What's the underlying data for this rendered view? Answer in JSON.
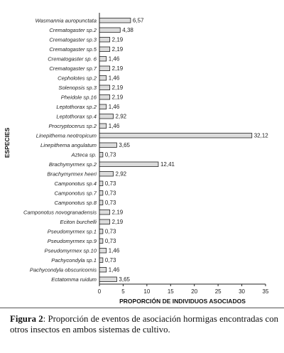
{
  "chart_data": {
    "type": "bar",
    "orientation": "horizontal",
    "categories": [
      "Wasmannia auropunctata",
      "Crematogaster sp.2",
      "Crematogaster sp.3",
      "Crematogaster sp.5",
      "Crematogaster sp. 6",
      "Crematogaster sp.7",
      "Cepholotes sp.2",
      "Solenopsis sp.3",
      "Pheidole sp.16",
      "Leptothorax sp.2",
      "Leptothorax sp.4",
      "Procryptocerus sp.2",
      "Linepithema neotropicum",
      "Linepithema angulatum",
      "Azteca sp.",
      "Brachymyrmex sp.2",
      "Brachymyrmex heeri",
      "Camponotus sp.4",
      "Camponotus sp.7",
      "Camponotus sp.8",
      "Camponotus novogranadensis",
      "Eciton burchelli",
      "Pseudomyrmex sp.1",
      "Pseudomyrmex sp.9",
      "Pseudomyrmex sp.10",
      "Pachycondyla sp.1",
      "Pachycondyla obscuricornis",
      "Ectatomma ruidum"
    ],
    "values": [
      6.57,
      4.38,
      2.19,
      2.19,
      1.46,
      2.19,
      1.46,
      2.19,
      2.19,
      1.46,
      2.92,
      1.46,
      32.12,
      3.65,
      0.73,
      12.41,
      2.92,
      0.73,
      0.73,
      0.73,
      2.19,
      2.19,
      0.73,
      0.73,
      1.46,
      0.73,
      1.46,
      3.65
    ],
    "value_labels": [
      "6,57",
      "4,38",
      "2,19",
      "2,19",
      "1,46",
      "2,19",
      "1,46",
      "2,19",
      "2,19",
      "1,46",
      "2,92",
      "1,46",
      "32,12",
      "3,65",
      "0,73",
      "12,41",
      "2,92",
      "0,73",
      "0,73",
      "0,73",
      "2,19",
      "2,19",
      "0,73",
      "0,73",
      "1,46",
      "0,73",
      "1,46",
      "3,65"
    ],
    "xlabel": "PROPORCIÓN DE INDIVIDUOS ASOCIADOS",
    "ylabel": "ESPECIES",
    "xlim": [
      0,
      35
    ],
    "xticks": [
      0,
      5,
      10,
      15,
      20,
      25,
      30,
      35
    ],
    "grid": false,
    "bar_color": "#dcdcdc"
  },
  "caption": {
    "label": "Figura 2",
    "text": ": Proporción de eventos de asociación hormigas encontradas con otros insectos en ambos sistemas de cultivo."
  }
}
